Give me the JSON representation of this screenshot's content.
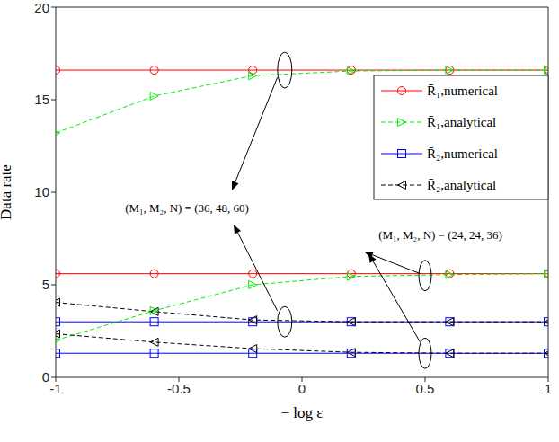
{
  "chart_data": {
    "type": "line",
    "x_label": "− log ε",
    "y_label": "Data rate",
    "x": [
      -1,
      -0.6,
      -0.2,
      0.2,
      0.6,
      1
    ],
    "xlim": [
      -1,
      1
    ],
    "xticks": [
      -1,
      -0.5,
      0,
      0.5,
      1
    ],
    "ylim": [
      0,
      20
    ],
    "yticks": [
      0,
      5,
      10,
      15,
      20
    ],
    "grid": false,
    "legend": "upper right",
    "series": [
      {
        "name": "R̄₁,numerical",
        "color": "#ff0000",
        "marker": "circle",
        "line_style": "solid",
        "values": [
          16.6,
          16.6,
          16.6,
          16.6,
          16.6,
          16.6
        ]
      },
      {
        "name": "R̄₁,analytical",
        "color": "#00ee00",
        "marker": "triangle-right",
        "line_style": "dashed",
        "values": [
          13.2,
          15.2,
          16.3,
          16.55,
          16.6,
          16.6
        ]
      },
      {
        "name": "R̄₂,numerical",
        "color": "#0000ff",
        "marker": "square",
        "line_style": "solid",
        "values": [
          3.0,
          3.0,
          3.0,
          3.0,
          3.0,
          3.0
        ]
      },
      {
        "name": "R̄₂,analytical",
        "color": "#000000",
        "marker": "triangle-left",
        "line_style": "dashed",
        "values": [
          4.05,
          3.55,
          3.1,
          3.0,
          3.0,
          3.0
        ]
      },
      {
        "name": "R̄₁,numerical",
        "color": "#ff0000",
        "marker": "circle",
        "line_style": "solid",
        "values": [
          5.6,
          5.6,
          5.6,
          5.6,
          5.6,
          5.6
        ]
      },
      {
        "name": "R̄₁,analytical",
        "color": "#00ee00",
        "marker": "triangle-right",
        "line_style": "dashed",
        "values": [
          2.0,
          3.6,
          5.0,
          5.45,
          5.55,
          5.6
        ]
      },
      {
        "name": "R̄₂,numerical",
        "color": "#0000ff",
        "marker": "square",
        "line_style": "solid",
        "values": [
          1.3,
          1.3,
          1.3,
          1.3,
          1.3,
          1.3
        ]
      },
      {
        "name": "R̄₂,analytical",
        "color": "#000000",
        "marker": "triangle-left",
        "line_style": "dashed",
        "values": [
          2.35,
          1.9,
          1.55,
          1.35,
          1.3,
          1.3
        ]
      }
    ],
    "annotations": [
      "(M₁, M₂, N) = (36, 48, 60)",
      "(M₁, M₂, N) = (24, 24, 36)"
    ]
  }
}
